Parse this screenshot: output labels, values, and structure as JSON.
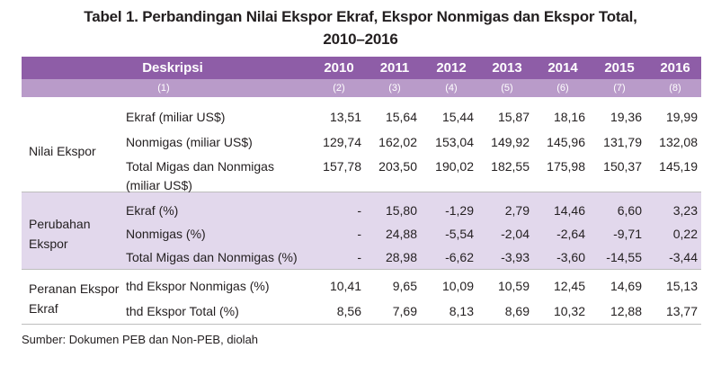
{
  "title_line1": "Tabel 1. Perbandingan Nilai Ekspor Ekraf, Ekspor Nonmigas dan Ekspor Total,",
  "title_line2": "2010–2016",
  "header": {
    "deskripsi": "Deskripsi",
    "years": [
      "2010",
      "2011",
      "2012",
      "2013",
      "2014",
      "2015",
      "2016"
    ]
  },
  "col_numbers": [
    "(1)",
    "(2)",
    "(3)",
    "(4)",
    "(5)",
    "(6)",
    "(7)",
    "(8)"
  ],
  "groups": [
    {
      "label": [
        "Nilai Ekspor"
      ],
      "rows": [
        {
          "desc": [
            "Ekraf (miliar US$)"
          ],
          "values": [
            "13,51",
            "15,64",
            "15,44",
            "15,87",
            "18,16",
            "19,36",
            "19,99"
          ]
        },
        {
          "desc": [
            "Nonmigas (miliar US$)"
          ],
          "values": [
            "129,74",
            "162,02",
            "153,04",
            "149,92",
            "145,96",
            "131,79",
            "132,08"
          ]
        },
        {
          "desc": [
            "Total Migas dan Nonmigas",
            "(miliar US$)"
          ],
          "values": [
            "157,78",
            "203,50",
            "190,02",
            "182,55",
            "175,98",
            "150,37",
            "145,19"
          ]
        }
      ]
    },
    {
      "label": [
        "Perubahan",
        "Ekspor"
      ],
      "rows": [
        {
          "desc": [
            "Ekraf (%)"
          ],
          "values": [
            "-",
            "15,80",
            "-1,29",
            "2,79",
            "14,46",
            "6,60",
            "3,23"
          ]
        },
        {
          "desc": [
            "Nonmigas (%)"
          ],
          "values": [
            "-",
            "24,88",
            "-5,54",
            "-2,04",
            "-2,64",
            "-9,71",
            "0,22"
          ]
        },
        {
          "desc": [
            "Total Migas dan Nonmigas (%)"
          ],
          "values": [
            "-",
            "28,98",
            "-6,62",
            "-3,93",
            "-3,60",
            "-14,55",
            "-3,44"
          ]
        }
      ]
    },
    {
      "label": [
        "Peranan Ekspor",
        "Ekraf"
      ],
      "rows": [
        {
          "desc": [
            "thd Ekspor Nonmigas (%)"
          ],
          "values": [
            "10,41",
            "9,65",
            "10,09",
            "10,59",
            "12,45",
            "14,69",
            "15,13"
          ]
        },
        {
          "desc": [
            "thd Ekspor Total (%)"
          ],
          "values": [
            "8,56",
            "7,69",
            "8,13",
            "8,69",
            "10,32",
            "12,88",
            "13,77"
          ]
        }
      ]
    }
  ],
  "source": "Sumber: Dokumen PEB dan Non-PEB, diolah"
}
